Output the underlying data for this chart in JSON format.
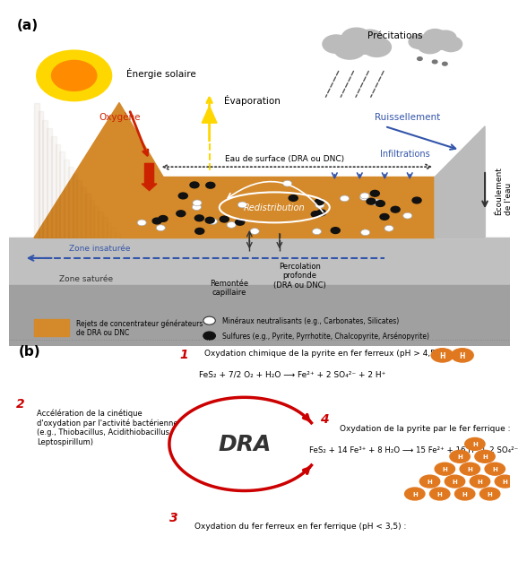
{
  "panel_a_label": "(a)",
  "panel_b_label": "(b)",
  "energie_solaire": "Énergie solaire",
  "precipitations": "Précitations",
  "evaporation": "Évaporation",
  "ruissellement": "Ruissellement",
  "eau_surface": "Eau de surface (DRA ou DNC)",
  "infiltrations": "Infiltrations",
  "redistribution": "Redistribution",
  "zone_insaturee": "Zone insaturée",
  "zone_saturee": "Zone saturée",
  "remontee": "Remontée\ncapillaire",
  "percolation": "Percolation\nprofonde\n(DRA ou DNC)",
  "ecoulement": "Écoulement\nde l'eau",
  "oxygene": "Oxygène",
  "legend_orange": "Rejets de concentrateur générateurs\nde DRA ou DNC",
  "legend_white_circle": "Minéraux neutralisants (e.g., Carbonates, Silicates)",
  "legend_black_circle": "Sulfures (e.g., Pyrite, Pyrrhotite, Chalcopyrite, Arsénopyrite)",
  "dra_label": "DRA",
  "step1_title": "Oxydation chimique de la pyrite en fer ferreux (pH > 4,5) :",
  "step1_eq": "FeS₂ + 7/2 O₂ + H₂O ⟶ Fe²⁺ + 2 SO₄²⁻ + 2 H⁺",
  "step2_title": "Accélération de la cinétique\nd'oxydation par l'activité bactérienne\n(e.g., Thiobacillus, Acidithiobacillus,\nLeptospirillum)",
  "step3_title": "Oxydation du fer ferreux en fer ferrique (pH < 3,5) :",
  "step4_title": "Oxydation de la pyrite par le fer ferrique :",
  "step4_eq": "FeS₂ + 14 Fe³⁺ + 8 H₂O ⟶ 15 Fe²⁺ + 16 H⁺ + 2 SO₄²⁻",
  "colors": {
    "orange_fill": "#D4892A",
    "orange_dark": "#8B5E20",
    "gray_rock": "#AAAAAA",
    "gray_light": "#CCCCCC",
    "blue_arrow": "#3355AA",
    "red_arrow": "#CC2200",
    "yellow_arrow": "#FFD700",
    "dra_red": "#CC0000",
    "dashed_blue": "#3355AA",
    "background": "#FFFFFF",
    "sun_yellow": "#FFD700",
    "sun_orange": "#FF8C00",
    "step_number": "#CC0000",
    "h_circle": "#E07820"
  }
}
